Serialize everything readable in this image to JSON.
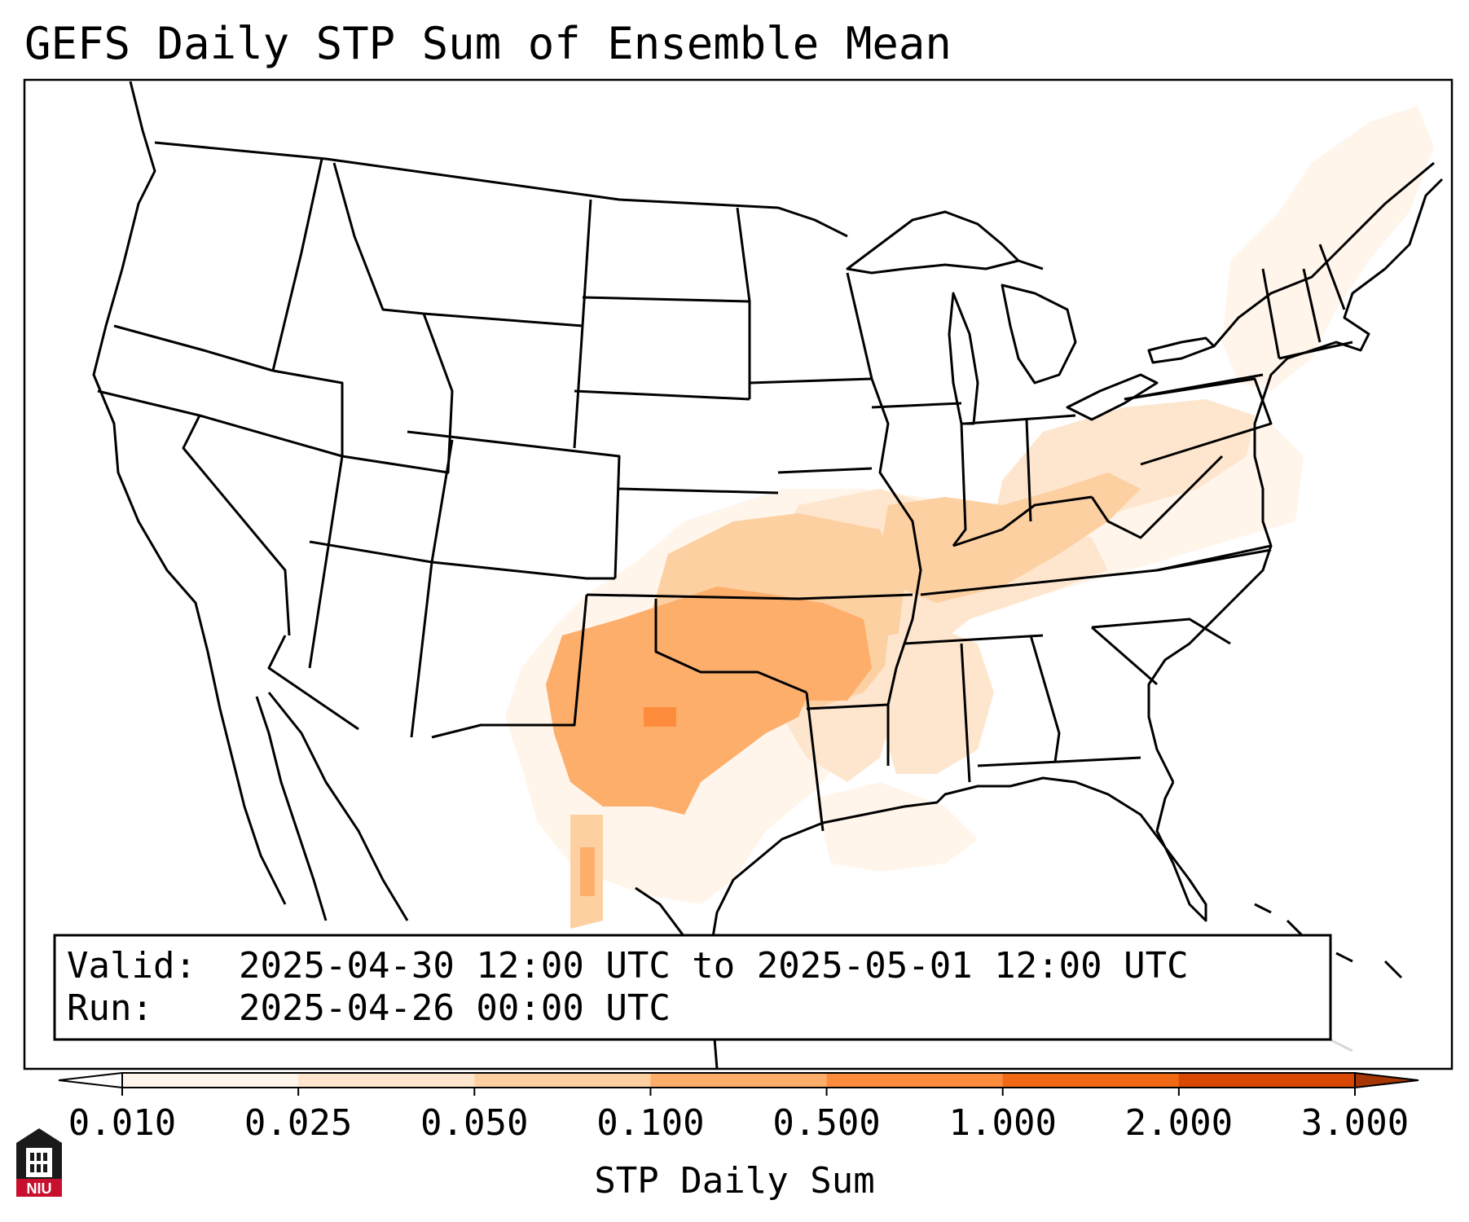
{
  "title": "GEFS Daily STP Sum of Ensemble Mean",
  "info": {
    "valid_label": "Valid:",
    "valid_value": "2025-04-30 12:00 UTC to 2025-05-01 12:00 UTC",
    "run_label": "Run:",
    "run_value": "2025-04-26 00:00 UTC"
  },
  "colorbar": {
    "label": "STP Daily Sum",
    "ticks": [
      "0.010",
      "0.025",
      "0.050",
      "0.100",
      "0.500",
      "1.000",
      "2.000",
      "3.000"
    ],
    "colors": [
      "#fff5eb",
      "#fee6ce",
      "#fdd0a2",
      "#fdae6b",
      "#fd8d3c",
      "#f16913",
      "#d94801",
      "#a63603"
    ]
  },
  "logo": {
    "text": "NIU",
    "accent": "#c8102e"
  },
  "map": {
    "projection": "Lambert Conformal (CONUS)",
    "region": "Contiguous United States",
    "colors": {
      "border": "#000000",
      "ocean_land": "#ffffff"
    }
  }
}
